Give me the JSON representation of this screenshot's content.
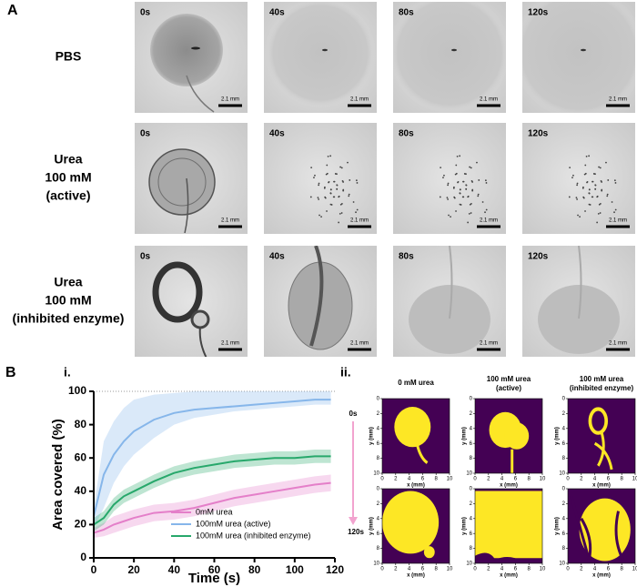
{
  "panel_a": {
    "label": "A",
    "rows": [
      {
        "label": [
          "PBS"
        ]
      },
      {
        "label": [
          "Urea",
          "100 mM",
          "(active)"
        ]
      },
      {
        "label": [
          "Urea",
          "100 mM",
          "(inhibited enzyme)"
        ]
      }
    ],
    "times": [
      "0s",
      "40s",
      "80s",
      "120s"
    ],
    "scale_bar": "2.1 mm"
  },
  "panel_b_label": "B",
  "chart_data": {
    "type": "line",
    "label": "i.",
    "xlabel": "Time (s)",
    "ylabel": "Area covered (%)",
    "xlim": [
      0,
      120
    ],
    "ylim": [
      0,
      100
    ],
    "xticks": [
      0,
      20,
      40,
      60,
      80,
      100,
      120
    ],
    "yticks": [
      0,
      20,
      40,
      60,
      80,
      100
    ],
    "legend": "lower right",
    "x": [
      0,
      5,
      10,
      15,
      20,
      30,
      40,
      50,
      60,
      70,
      80,
      90,
      100,
      110,
      118
    ],
    "series": [
      {
        "name": "0mM urea",
        "color": "#e47fc9",
        "values": [
          15,
          17,
          20,
          22,
          24,
          27,
          28,
          30,
          33,
          36,
          38,
          40,
          42,
          44,
          45
        ],
        "lower": [
          12,
          13,
          15,
          17,
          19,
          22,
          23,
          25,
          28,
          31,
          33,
          35,
          37,
          39,
          40
        ],
        "upper": [
          18,
          21,
          25,
          27,
          29,
          32,
          33,
          35,
          38,
          41,
          43,
          45,
          47,
          49,
          50
        ]
      },
      {
        "name": "100mM urea (active)",
        "color": "#86b6ea",
        "values": [
          25,
          50,
          62,
          70,
          76,
          83,
          87,
          89,
          90,
          91,
          92,
          93,
          94,
          95,
          95
        ],
        "lower": [
          18,
          30,
          45,
          55,
          62,
          72,
          80,
          84,
          86,
          88,
          89,
          90,
          91,
          92,
          92
        ],
        "upper": [
          30,
          70,
          82,
          90,
          95,
          98,
          99,
          100,
          100,
          100,
          100,
          100,
          100,
          100,
          100
        ]
      },
      {
        "name": "100mM urea (inhibited enzyme)",
        "color": "#27a86b",
        "values": [
          20,
          24,
          32,
          37,
          40,
          46,
          51,
          54,
          56,
          58,
          59,
          60,
          60,
          61,
          61
        ],
        "lower": [
          16,
          20,
          28,
          33,
          36,
          42,
          47,
          50,
          52,
          54,
          55,
          56,
          56,
          57,
          57
        ],
        "upper": [
          24,
          28,
          36,
          41,
          44,
          50,
          55,
          58,
          60,
          62,
          63,
          64,
          64,
          65,
          65
        ]
      }
    ]
  },
  "masks": {
    "label": "ii.",
    "columns": [
      [
        "0 mM urea"
      ],
      [
        "100 mM urea",
        "(active)"
      ],
      [
        "100 mM urea",
        "(inhibited enzyme)"
      ]
    ],
    "times": [
      "0s",
      "120s"
    ],
    "xlabel": "x (mm)",
    "ylabel": "y (mm)",
    "xticks": [
      0,
      2,
      4,
      6,
      8,
      10
    ],
    "yticks": [
      0,
      2,
      4,
      6,
      8,
      10
    ],
    "xlim": [
      0,
      10
    ],
    "ylim": [
      10,
      0
    ]
  }
}
